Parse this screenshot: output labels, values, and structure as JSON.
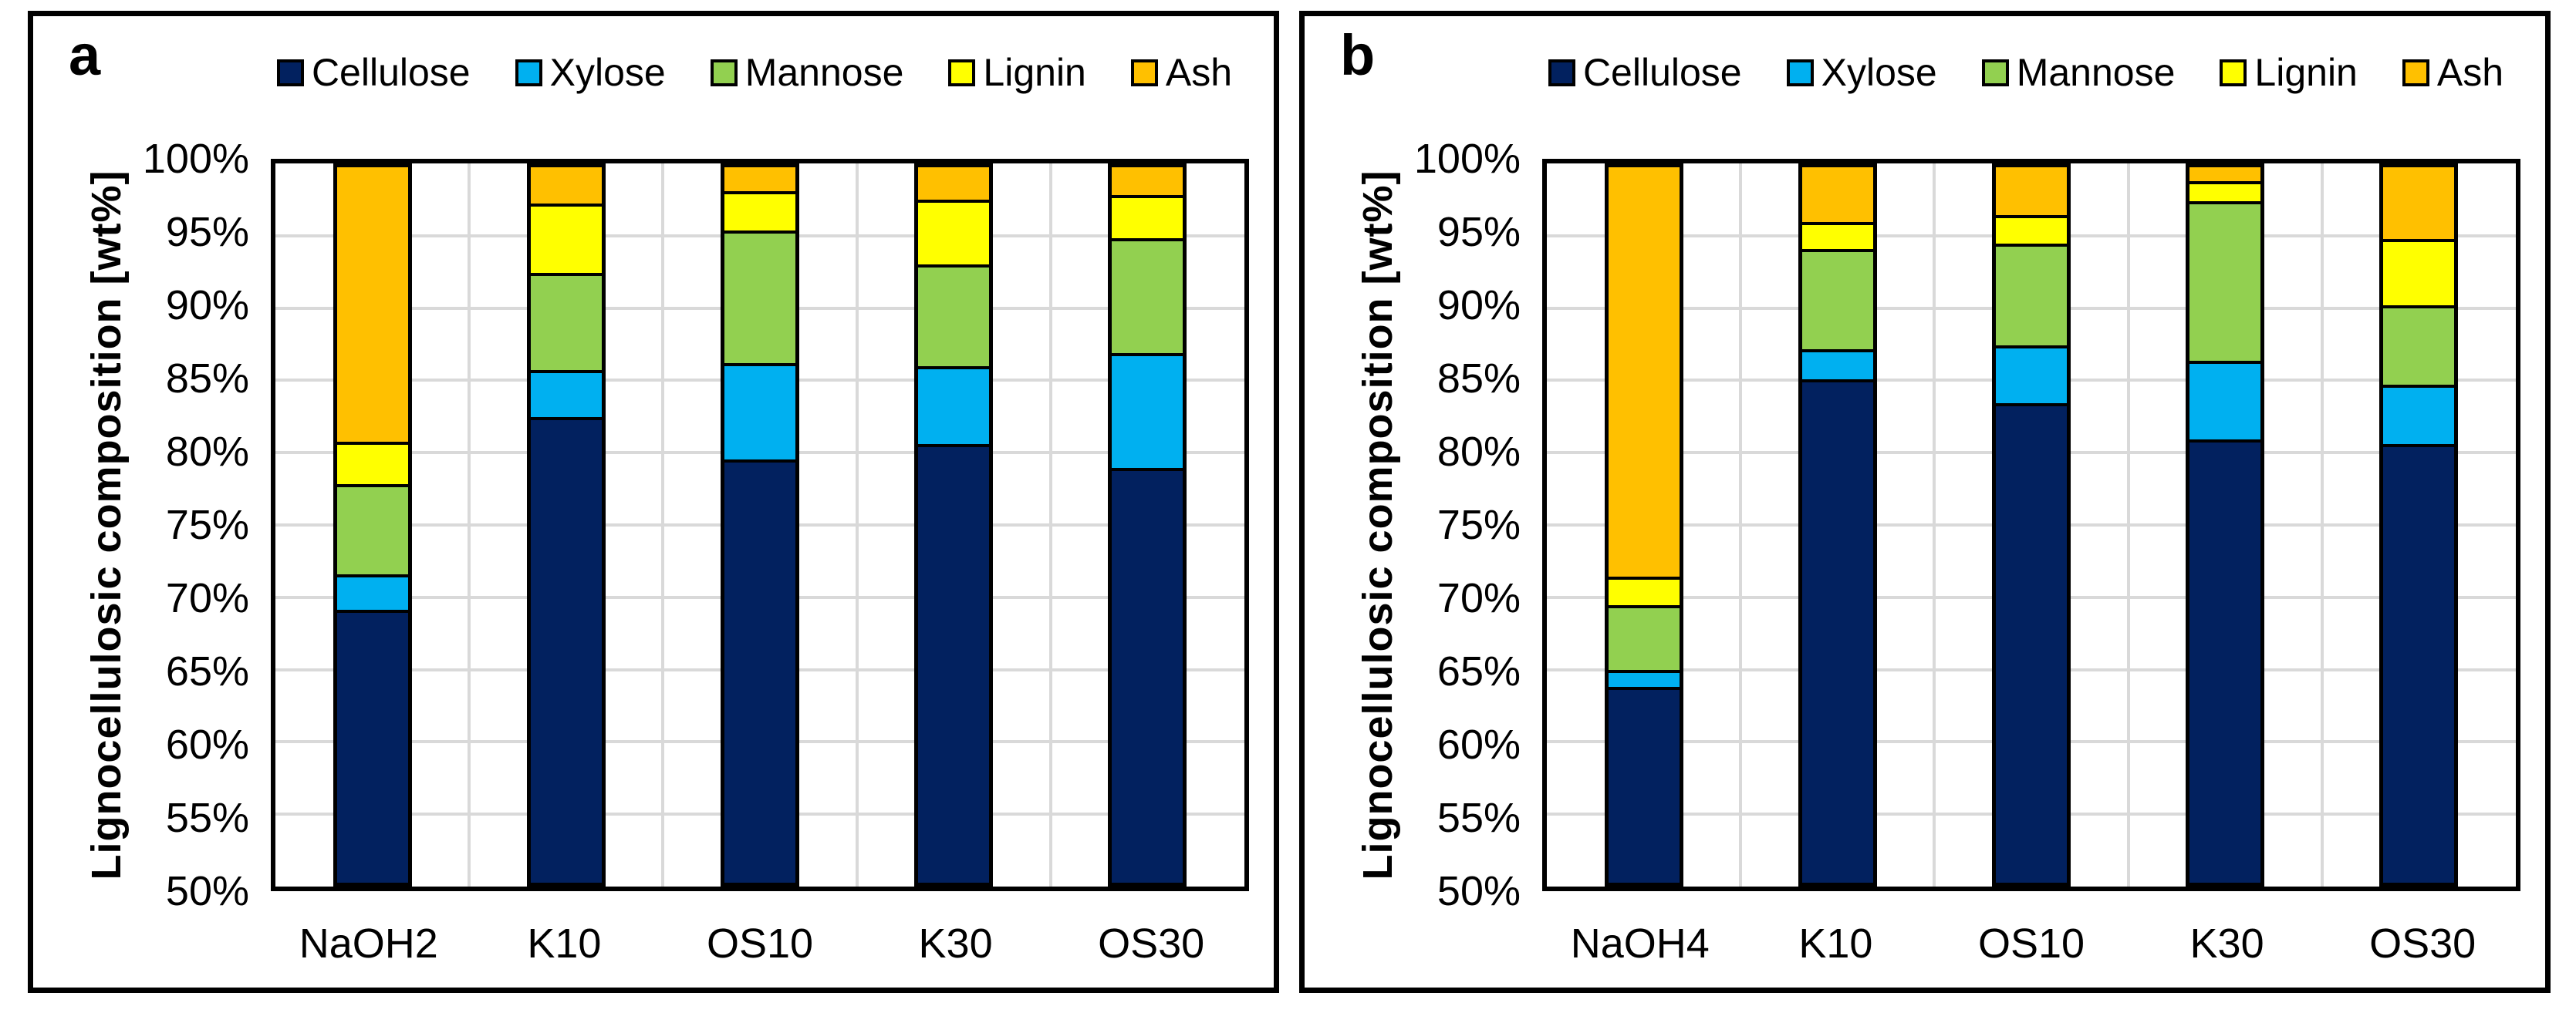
{
  "figure": {
    "background": "#ffffff",
    "border_color": "#000000",
    "grid_color": "#D9D9D9",
    "y_axis_title": "Lignocellulosic composition [wt%]",
    "y_ticks": [
      "100%",
      "95%",
      "90%",
      "85%",
      "80%",
      "75%",
      "70%",
      "65%",
      "60%",
      "55%",
      "50%"
    ],
    "series_colors": {
      "Cellulose": "#02215F",
      "Xylose": "#00B0F0",
      "Mannose": "#92D050",
      "Lignin": "#FFFF00",
      "Ash": "#FFC000"
    }
  },
  "chart_data": [
    {
      "type": "bar",
      "stacked": true,
      "panel_label": "a",
      "ylabel": "Lignocellulosic composition [wt%]",
      "units": "wt%",
      "ylim": [
        50,
        100
      ],
      "y_tick_step": 5,
      "grid": true,
      "legend_position": "top",
      "legend_entries": [
        "Cellulose",
        "Xylose",
        "Mannose",
        "Lignin",
        "Ash"
      ],
      "categories": [
        "NaOH2",
        "K10",
        "OS10",
        "K30",
        "OS30"
      ],
      "series": [
        {
          "name": "Cellulose",
          "color": "#02215F",
          "values": [
            69.2,
            82.9,
            79.9,
            81.0,
            79.3
          ]
        },
        {
          "name": "Xylose",
          "color": "#00B0F0",
          "values": [
            2.3,
            3.1,
            6.6,
            5.3,
            7.9
          ]
        },
        {
          "name": "Mannose",
          "color": "#92D050",
          "values": [
            6.2,
            6.7,
            9.2,
            7.0,
            8.0
          ]
        },
        {
          "name": "Lignin",
          "color": "#FFFF00",
          "values": [
            2.8,
            4.7,
            2.6,
            4.4,
            2.8
          ]
        },
        {
          "name": "Ash",
          "color": "#FFC000",
          "values": [
            19.5,
            2.6,
            1.7,
            2.3,
            2.0
          ]
        }
      ]
    },
    {
      "type": "bar",
      "stacked": true,
      "panel_label": "b",
      "ylabel": "Lignocellulosic composition [wt%]",
      "units": "wt%",
      "ylim": [
        50,
        100
      ],
      "y_tick_step": 5,
      "grid": true,
      "legend_position": "top",
      "legend_entries": [
        "Cellulose",
        "Xylose",
        "Mannose",
        "Lignin",
        "Ash"
      ],
      "categories": [
        "NaOH4",
        "K10",
        "OS10",
        "K30",
        "OS30"
      ],
      "series": [
        {
          "name": "Cellulose",
          "color": "#02215F",
          "values": [
            63.7,
            85.6,
            83.9,
            81.3,
            81.0
          ]
        },
        {
          "name": "Xylose",
          "color": "#00B0F0",
          "values": [
            1.0,
            1.9,
            3.9,
            5.4,
            4.0
          ]
        },
        {
          "name": "Mannose",
          "color": "#92D050",
          "values": [
            4.4,
            6.9,
            7.0,
            11.1,
            5.4
          ]
        },
        {
          "name": "Lignin",
          "color": "#FFFF00",
          "values": [
            1.8,
            1.7,
            1.8,
            1.2,
            4.5
          ]
        },
        {
          "name": "Ash",
          "color": "#FFC000",
          "values": [
            29.1,
            3.9,
            3.4,
            1.0,
            5.1
          ]
        }
      ]
    }
  ]
}
